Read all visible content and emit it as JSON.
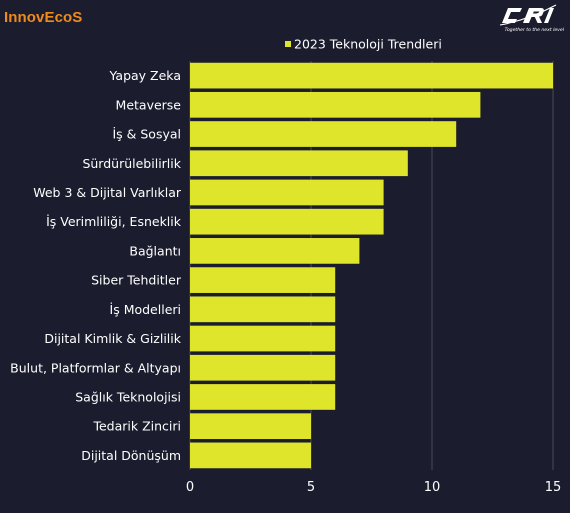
{
  "brand": {
    "left_logo": "InnovEcoS",
    "right_logo": "CRIF",
    "right_tagline": "Together to the next level"
  },
  "colors": {
    "background": "#1b1d2e",
    "bar": "#dfe52a",
    "text": "#ffffff",
    "grid": "#4a4c5e",
    "brand_orange": "#f08a1c"
  },
  "chart_data": {
    "type": "bar",
    "orientation": "horizontal",
    "categories": [
      "Yapay Zeka",
      "Metaverse",
      "İş & Sosyal",
      "Sürdürülebilirlik",
      "Web 3 & Dijital Varlıklar",
      "İş Verimliliği, Esneklik",
      "Bağlantı",
      "Siber Tehditler",
      "İş Modelleri",
      "Dijital Kimlik  & Gizlilik",
      "Bulut, Platformlar & Altyapı",
      "Sağlık Teknolojisi",
      "Tedarik Zinciri",
      "Dijital Dönüşüm"
    ],
    "series": [
      {
        "name": "2023 Teknoloji Trendleri",
        "values": [
          15,
          12,
          11,
          9,
          8,
          8,
          7,
          6,
          6,
          6,
          6,
          6,
          5,
          5
        ]
      }
    ],
    "xlim": [
      0,
      15
    ],
    "xticks": [
      0,
      5,
      10,
      15
    ],
    "grid": "vertical",
    "legend_position": "top-right",
    "xlabel": "",
    "ylabel": ""
  }
}
